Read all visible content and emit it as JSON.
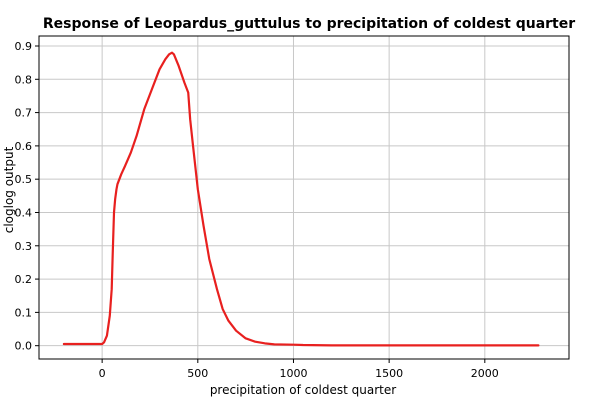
{
  "chart_data": {
    "type": "line",
    "title": "Response of Leopardus_guttulus to precipitation of coldest quarter",
    "xlabel": "precipitation of coldest quarter",
    "ylabel": "cloglog output",
    "xlim": [
      -330,
      2440
    ],
    "ylim": [
      -0.04,
      0.93
    ],
    "xticks": [
      0,
      500,
      1000,
      1500,
      2000
    ],
    "yticks": [
      0.0,
      0.1,
      0.2,
      0.3,
      0.4,
      0.5,
      0.6,
      0.7,
      0.8,
      0.9
    ],
    "xtick_labels": [
      "0",
      "500",
      "1000",
      "1500",
      "2000"
    ],
    "ytick_labels": [
      "0.0",
      "0.1",
      "0.2",
      "0.3",
      "0.4",
      "0.5",
      "0.6",
      "0.7",
      "0.8",
      "0.9"
    ],
    "grid": true,
    "series": [
      {
        "color": "#e8201f",
        "x": [
          -200,
          -100,
          0,
          10,
          25,
          40,
          50,
          55,
          62,
          68,
          75,
          80,
          90,
          100,
          120,
          150,
          180,
          200,
          220,
          260,
          300,
          330,
          350,
          365,
          375,
          400,
          430,
          450,
          460,
          475,
          500,
          530,
          560,
          600,
          630,
          660,
          700,
          750,
          800,
          850,
          900,
          1000,
          1050,
          1200,
          1500,
          2000,
          2280
        ],
        "y": [
          0.005,
          0.005,
          0.005,
          0.01,
          0.03,
          0.09,
          0.17,
          0.27,
          0.4,
          0.44,
          0.47,
          0.485,
          0.5,
          0.515,
          0.54,
          0.58,
          0.63,
          0.67,
          0.71,
          0.77,
          0.83,
          0.86,
          0.875,
          0.88,
          0.875,
          0.84,
          0.79,
          0.76,
          0.68,
          0.6,
          0.47,
          0.36,
          0.26,
          0.17,
          0.11,
          0.075,
          0.045,
          0.022,
          0.012,
          0.007,
          0.004,
          0.003,
          0.002,
          0.001,
          0.001,
          0.001,
          0.001
        ]
      }
    ]
  }
}
